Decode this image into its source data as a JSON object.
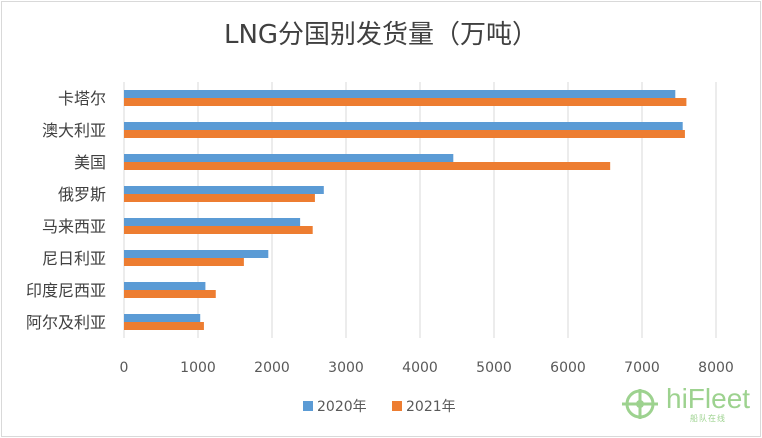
{
  "chart_data": {
    "type": "bar",
    "orientation": "horizontal",
    "title": "LNG分国别发货量（万吨）",
    "categories": [
      "卡塔尔",
      "澳大利亚",
      "美国",
      "俄罗斯",
      "马来西亚",
      "尼日利亚",
      "印度尼西亚",
      "阿尔及利亚"
    ],
    "series": [
      {
        "name": "2020年",
        "values": [
          7450,
          7550,
          4450,
          2700,
          2380,
          1950,
          1100,
          1030
        ],
        "color": "#5b9bd5"
      },
      {
        "name": "2021年",
        "values": [
          7600,
          7580,
          6570,
          2580,
          2550,
          1620,
          1240,
          1080
        ],
        "color": "#ed7d31"
      }
    ],
    "xlim": [
      0,
      8000
    ],
    "xticks": [
      "0",
      "1000",
      "2000",
      "3000",
      "4000",
      "5000",
      "6000",
      "7000",
      "8000"
    ],
    "grid": true,
    "legend": "bottom"
  },
  "watermark": {
    "brand": "hiFleet",
    "sub": "船队在线",
    "icon": "hifleet-logo-icon"
  }
}
